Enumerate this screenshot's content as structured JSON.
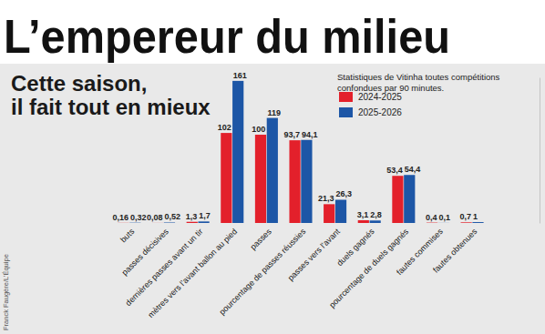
{
  "chart_data": {
    "type": "bar",
    "title": "L’empereur du milieu",
    "subtitle": [
      "Cette saison,",
      "il fait tout en mieux"
    ],
    "annotations": [
      "Statistiques de Vitinha toutes compétitions confondues par 90 minutes.",
      "Franck Faugère/L’Équipe"
    ],
    "categories": [
      "buts",
      "passes décisives",
      "dernières passes avant un tir",
      "mètres vers l’avant ballon au pied",
      "passes",
      "pourcentage de passes réussies",
      "passes vers l’avant",
      "duels gagnés",
      "pourcentage de duels gagnés",
      "fautes commises",
      "fautes obtenues"
    ],
    "series": [
      {
        "name": "2024-2025",
        "color": "#e3202b",
        "values": [
          0.16,
          0.08,
          1.3,
          102,
          100,
          93.7,
          21.3,
          3.1,
          53.4,
          0.4,
          0.7
        ],
        "value_labels": [
          "0,16",
          "0,08",
          "1,3",
          "102",
          "100",
          "93,7",
          "21,3",
          "3,1",
          "53,4",
          "0,4",
          "0,7"
        ]
      },
      {
        "name": "2025-2026",
        "color": "#1d56a6",
        "values": [
          0.32,
          0.52,
          1.7,
          161,
          119,
          94.1,
          26.3,
          2.8,
          54.4,
          0.1,
          1
        ],
        "value_labels": [
          "0,32",
          "0,52",
          "1,7",
          "161",
          "119",
          "94,1",
          "26,3",
          "2,8",
          "54,4",
          "0,1",
          "1"
        ]
      }
    ],
    "ylim": [
      0,
      165
    ],
    "yticks": [],
    "grid": false,
    "legend": "top-right",
    "data_labels": true,
    "tick_labels": "x"
  }
}
